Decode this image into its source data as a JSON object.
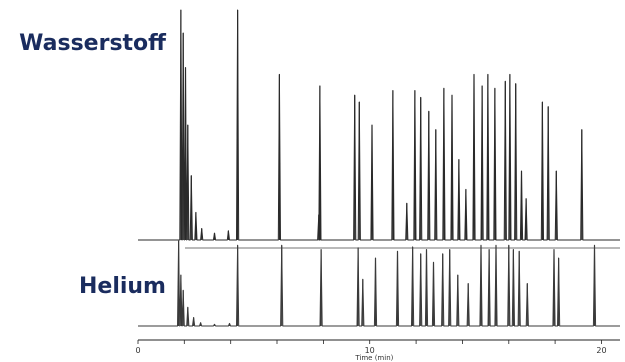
{
  "chart_data": {
    "type": "line",
    "xlabel": "Time (min)",
    "xlim": [
      0,
      20.8
    ],
    "x_ticks": [
      0,
      10,
      20
    ],
    "series": [
      {
        "name": "Wasserstoff",
        "peaks": [
          {
            "t": 1.85,
            "h": 1.0
          },
          {
            "t": 1.95,
            "h": 0.9
          },
          {
            "t": 2.05,
            "h": 0.75
          },
          {
            "t": 2.15,
            "h": 0.5
          },
          {
            "t": 2.3,
            "h": 0.28
          },
          {
            "t": 2.5,
            "h": 0.12
          },
          {
            "t": 2.75,
            "h": 0.05
          },
          {
            "t": 3.3,
            "h": 0.03
          },
          {
            "t": 3.9,
            "h": 0.04
          },
          {
            "t": 4.3,
            "h": 1.0
          },
          {
            "t": 6.1,
            "h": 0.72
          },
          {
            "t": 7.8,
            "h": 0.11
          },
          {
            "t": 7.85,
            "h": 0.67
          },
          {
            "t": 9.35,
            "h": 0.63
          },
          {
            "t": 9.55,
            "h": 0.6
          },
          {
            "t": 10.1,
            "h": 0.5
          },
          {
            "t": 11.0,
            "h": 0.65
          },
          {
            "t": 11.6,
            "h": 0.16
          },
          {
            "t": 11.95,
            "h": 0.65
          },
          {
            "t": 12.2,
            "h": 0.62
          },
          {
            "t": 12.55,
            "h": 0.56
          },
          {
            "t": 12.85,
            "h": 0.48
          },
          {
            "t": 13.2,
            "h": 0.66
          },
          {
            "t": 13.55,
            "h": 0.63
          },
          {
            "t": 13.85,
            "h": 0.35
          },
          {
            "t": 14.15,
            "h": 0.22
          },
          {
            "t": 14.5,
            "h": 0.72
          },
          {
            "t": 14.85,
            "h": 0.67
          },
          {
            "t": 15.1,
            "h": 0.72
          },
          {
            "t": 15.4,
            "h": 0.66
          },
          {
            "t": 15.85,
            "h": 0.69
          },
          {
            "t": 16.05,
            "h": 0.72
          },
          {
            "t": 16.3,
            "h": 0.68
          },
          {
            "t": 16.55,
            "h": 0.3
          },
          {
            "t": 16.75,
            "h": 0.18
          },
          {
            "t": 17.45,
            "h": 0.6
          },
          {
            "t": 17.7,
            "h": 0.58
          },
          {
            "t": 18.05,
            "h": 0.3
          },
          {
            "t": 19.15,
            "h": 0.48
          }
        ]
      },
      {
        "name": "Helium",
        "peaks": [
          {
            "t": 1.75,
            "h": 1.0
          },
          {
            "t": 1.85,
            "h": 0.6
          },
          {
            "t": 1.95,
            "h": 0.42
          },
          {
            "t": 2.15,
            "h": 0.22
          },
          {
            "t": 2.4,
            "h": 0.1
          },
          {
            "t": 2.7,
            "h": 0.04
          },
          {
            "t": 3.3,
            "h": 0.02
          },
          {
            "t": 3.95,
            "h": 0.03
          },
          {
            "t": 4.3,
            "h": 0.95
          },
          {
            "t": 6.2,
            "h": 0.95
          },
          {
            "t": 7.9,
            "h": 0.9
          },
          {
            "t": 9.5,
            "h": 0.92
          },
          {
            "t": 9.7,
            "h": 0.55
          },
          {
            "t": 10.25,
            "h": 0.8
          },
          {
            "t": 11.2,
            "h": 0.88
          },
          {
            "t": 11.85,
            "h": 0.93
          },
          {
            "t": 12.2,
            "h": 0.85
          },
          {
            "t": 12.45,
            "h": 0.9
          },
          {
            "t": 12.75,
            "h": 0.75
          },
          {
            "t": 13.15,
            "h": 0.85
          },
          {
            "t": 13.45,
            "h": 0.9
          },
          {
            "t": 13.8,
            "h": 0.6
          },
          {
            "t": 14.25,
            "h": 0.5
          },
          {
            "t": 14.8,
            "h": 0.95
          },
          {
            "t": 15.15,
            "h": 0.9
          },
          {
            "t": 15.45,
            "h": 0.95
          },
          {
            "t": 16.0,
            "h": 0.95
          },
          {
            "t": 16.2,
            "h": 0.9
          },
          {
            "t": 16.45,
            "h": 0.88
          },
          {
            "t": 16.8,
            "h": 0.5
          },
          {
            "t": 17.95,
            "h": 0.9
          },
          {
            "t": 18.15,
            "h": 0.8
          },
          {
            "t": 19.7,
            "h": 0.95
          }
        ]
      }
    ]
  }
}
